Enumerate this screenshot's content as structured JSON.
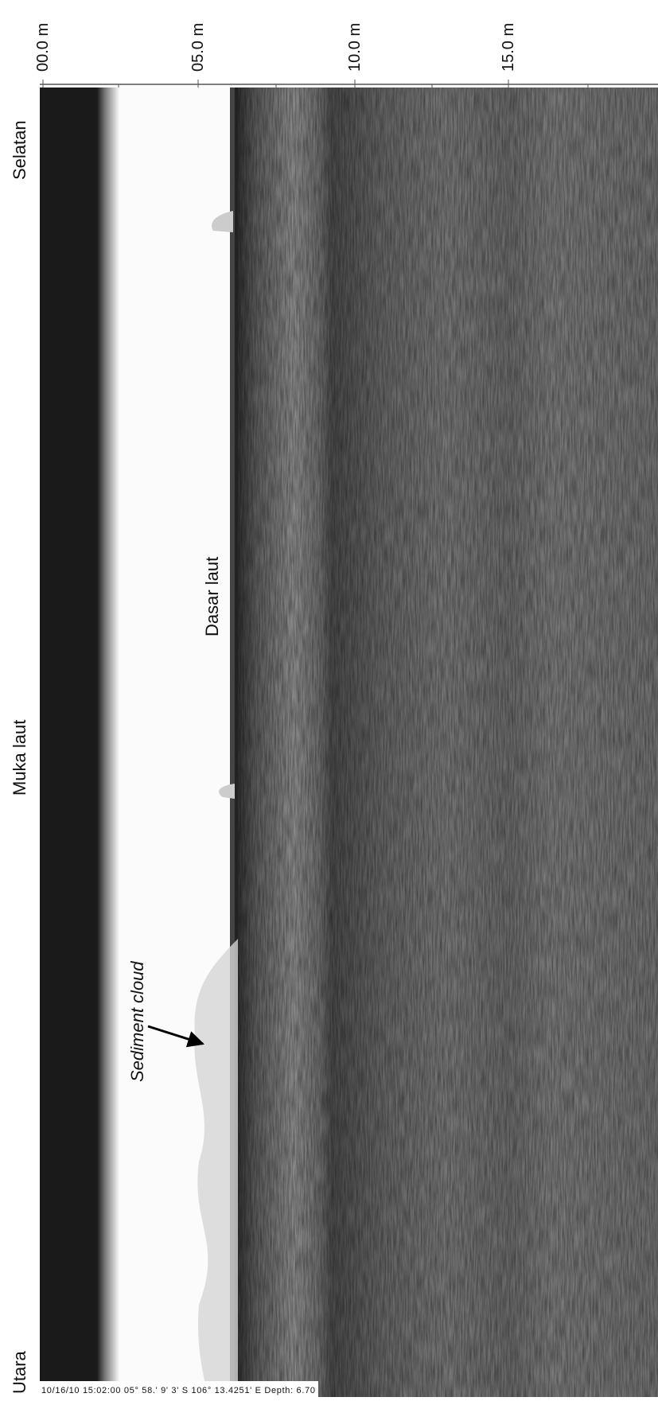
{
  "axis": {
    "ticks": [
      "00.0 m",
      "05.0 m",
      "10.0 m",
      "15.0 m"
    ]
  },
  "side_labels": {
    "top": "Selatan",
    "middle": "Muka laut",
    "bottom": "Utara"
  },
  "annotations": {
    "seabed": "Dasar laut",
    "sediment": "Sediment cloud"
  },
  "footer": "10/16/10 15:02:00 05° 58.' 9' 3' S 106° 13.4251' E Depth: 6.70"
}
